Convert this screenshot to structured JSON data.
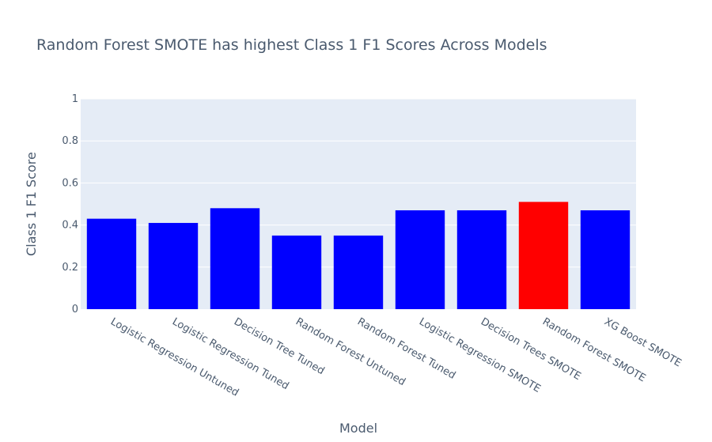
{
  "chart_data": {
    "type": "bar",
    "title": "Random Forest SMOTE has highest Class 1 F1 Scores Across Models",
    "xlabel": "Model",
    "ylabel": "Class 1 F1 Score",
    "ylim": [
      0,
      1
    ],
    "yticks": [
      0,
      0.2,
      0.4,
      0.6,
      0.8,
      1
    ],
    "ytick_labels": [
      "0",
      "0.2",
      "0.4",
      "0.6",
      "0.8",
      "1"
    ],
    "grid": true,
    "categories": [
      "Logistic Regression Untuned",
      "Logistic Regression Tuned",
      "Decision Tree Tuned",
      "Random Forest Untuned",
      "Random Forest Tuned",
      "Logistic Regression SMOTE",
      "Decision Trees SMOTE",
      "Random Forest SMOTE",
      "XG Boost SMOTE"
    ],
    "values": [
      0.43,
      0.41,
      0.48,
      0.35,
      0.35,
      0.47,
      0.47,
      0.51,
      0.47
    ],
    "colors": [
      "#0000ff",
      "#0000ff",
      "#0000ff",
      "#0000ff",
      "#0000ff",
      "#0000ff",
      "#0000ff",
      "#ff0000",
      "#0000ff"
    ],
    "plot_background": "#e5ecf6"
  }
}
